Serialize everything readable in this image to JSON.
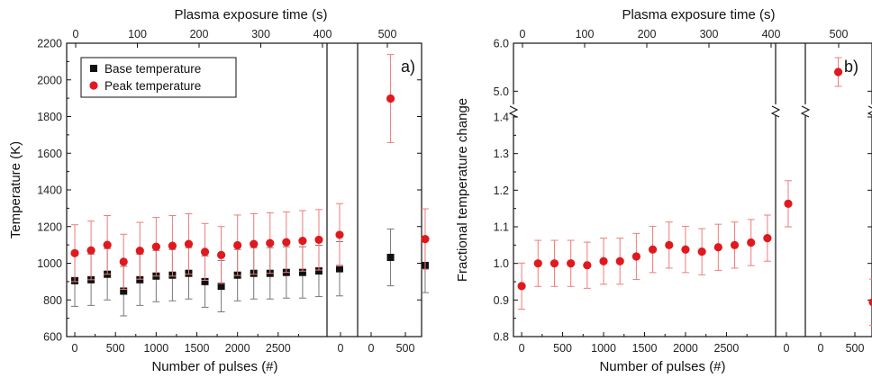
{
  "chart_data": [
    {
      "type": "scatter",
      "panel_label": "a)",
      "xlabel": "Number of pulses (#)",
      "x2label": "Plasma exposure time (s)",
      "ylabel": "Temperature (K)",
      "ylim": [
        600,
        2200
      ],
      "yticks": [
        "600",
        "800",
        "1000",
        "1200",
        "1400",
        "1600",
        "1800",
        "2000",
        "2200"
      ],
      "xlim": [
        -100,
        3100
      ],
      "xticks": [
        "0",
        "500",
        "1000",
        "1500",
        "2000",
        "2500"
      ],
      "x2lim": [
        0,
        400
      ],
      "x2ticks": [
        "0",
        "100",
        "200",
        "300",
        "400"
      ],
      "break_xticks": [
        "0",
        "500"
      ],
      "break_x2ticks": [
        "500"
      ],
      "legend": {
        "position": "top-left",
        "items": [
          {
            "label": "Base temperature",
            "series": 0
          },
          {
            "label": "Peak temperature",
            "series": 1
          }
        ]
      },
      "series": [
        {
          "name": "Base temperature",
          "marker": "square",
          "color": "#111111",
          "errcolor": "#777777",
          "main": [
            {
              "x": 0,
              "y": 905,
              "err": 140
            },
            {
              "x": 200,
              "y": 910,
              "err": 140
            },
            {
              "x": 400,
              "y": 940,
              "err": 140
            },
            {
              "x": 600,
              "y": 848,
              "err": 135
            },
            {
              "x": 800,
              "y": 910,
              "err": 140
            },
            {
              "x": 1000,
              "y": 930,
              "err": 140
            },
            {
              "x": 1200,
              "y": 935,
              "err": 140
            },
            {
              "x": 1400,
              "y": 945,
              "err": 140
            },
            {
              "x": 1600,
              "y": 900,
              "err": 140
            },
            {
              "x": 1800,
              "y": 875,
              "err": 140
            },
            {
              "x": 2000,
              "y": 935,
              "err": 140
            },
            {
              "x": 2200,
              "y": 945,
              "err": 140
            },
            {
              "x": 2400,
              "y": 945,
              "err": 140
            },
            {
              "x": 2600,
              "y": 950,
              "err": 140
            },
            {
              "x": 2800,
              "y": 950,
              "err": 140
            },
            {
              "x": 3000,
              "y": 958,
              "err": 140
            }
          ],
          "break1": [
            {
              "x": 150,
              "y": 970,
              "err": 148
            }
          ],
          "break2": [
            {
              "x": 180,
              "y": 1032,
              "err": 155
            },
            {
              "x": 380,
              "y": 988,
              "err": 148
            }
          ]
        },
        {
          "name": "Peak temperature",
          "marker": "circle",
          "color": "#e0191e",
          "errcolor": "#ef7b7b",
          "main": [
            {
              "x": 0,
              "y": 1055,
              "err": 155
            },
            {
              "x": 200,
              "y": 1070,
              "err": 160
            },
            {
              "x": 400,
              "y": 1100,
              "err": 160
            },
            {
              "x": 600,
              "y": 1008,
              "err": 150
            },
            {
              "x": 800,
              "y": 1068,
              "err": 155
            },
            {
              "x": 1000,
              "y": 1090,
              "err": 160
            },
            {
              "x": 1200,
              "y": 1095,
              "err": 165
            },
            {
              "x": 1400,
              "y": 1105,
              "err": 165
            },
            {
              "x": 1600,
              "y": 1062,
              "err": 155
            },
            {
              "x": 1800,
              "y": 1045,
              "err": 155
            },
            {
              "x": 2000,
              "y": 1098,
              "err": 165
            },
            {
              "x": 2200,
              "y": 1105,
              "err": 165
            },
            {
              "x": 2400,
              "y": 1110,
              "err": 165
            },
            {
              "x": 2600,
              "y": 1115,
              "err": 165
            },
            {
              "x": 2800,
              "y": 1122,
              "err": 165
            },
            {
              "x": 3000,
              "y": 1128,
              "err": 165
            }
          ],
          "break1": [
            {
              "x": 150,
              "y": 1155,
              "err": 170
            }
          ],
          "break2": [
            {
              "x": 180,
              "y": 1898,
              "err": 240
            },
            {
              "x": 380,
              "y": 1132,
              "err": 165
            }
          ]
        }
      ]
    },
    {
      "type": "scatter",
      "panel_label": "b)",
      "xlabel": "Number of pulses (#)",
      "x2label": "Plasma exposure time (s)",
      "ylabel": "Fractional temperature change",
      "y_axis_break": true,
      "ylim_lower": [
        0.8,
        1.4
      ],
      "ylim_upper": [
        4.8,
        6.0
      ],
      "yticks": [
        "0.8",
        "0.9",
        "1.0",
        "1.1",
        "1.2",
        "1.3",
        "1.4",
        "5.0",
        "6.0"
      ],
      "xlim": [
        -100,
        3100
      ],
      "xticks": [
        "0",
        "500",
        "1000",
        "1500",
        "2000",
        "2500"
      ],
      "x2lim": [
        0,
        400
      ],
      "x2ticks": [
        "0",
        "100",
        "200",
        "300",
        "400"
      ],
      "break_xticks": [
        "0",
        "500"
      ],
      "break_x2ticks": [
        "500"
      ],
      "series": [
        {
          "name": "",
          "marker": "circle",
          "color": "#e0191e",
          "errcolor": "#ef7b7b",
          "main": [
            {
              "x": 0,
              "y": 0.938,
              "err": 0.063
            },
            {
              "x": 200,
              "y": 1.0,
              "err": 0.063
            },
            {
              "x": 400,
              "y": 1.0,
              "err": 0.063
            },
            {
              "x": 600,
              "y": 1.0,
              "err": 0.063
            },
            {
              "x": 800,
              "y": 0.995,
              "err": 0.063
            },
            {
              "x": 1000,
              "y": 1.006,
              "err": 0.063
            },
            {
              "x": 1200,
              "y": 1.006,
              "err": 0.063
            },
            {
              "x": 1400,
              "y": 1.019,
              "err": 0.063
            },
            {
              "x": 1600,
              "y": 1.038,
              "err": 0.063
            },
            {
              "x": 1800,
              "y": 1.05,
              "err": 0.063
            },
            {
              "x": 2000,
              "y": 1.038,
              "err": 0.063
            },
            {
              "x": 2200,
              "y": 1.032,
              "err": 0.063
            },
            {
              "x": 2400,
              "y": 1.044,
              "err": 0.063
            },
            {
              "x": 2600,
              "y": 1.05,
              "err": 0.063
            },
            {
              "x": 2800,
              "y": 1.057,
              "err": 0.063
            },
            {
              "x": 3000,
              "y": 1.069,
              "err": 0.063
            }
          ],
          "break1": [
            {
              "x": 150,
              "y": 1.163,
              "err": 0.063
            }
          ],
          "break2": [
            {
              "x": 180,
              "y": 5.4,
              "err": 0.3
            },
            {
              "x": 380,
              "y": 0.894,
              "err": 0.063
            }
          ]
        }
      ]
    }
  ]
}
